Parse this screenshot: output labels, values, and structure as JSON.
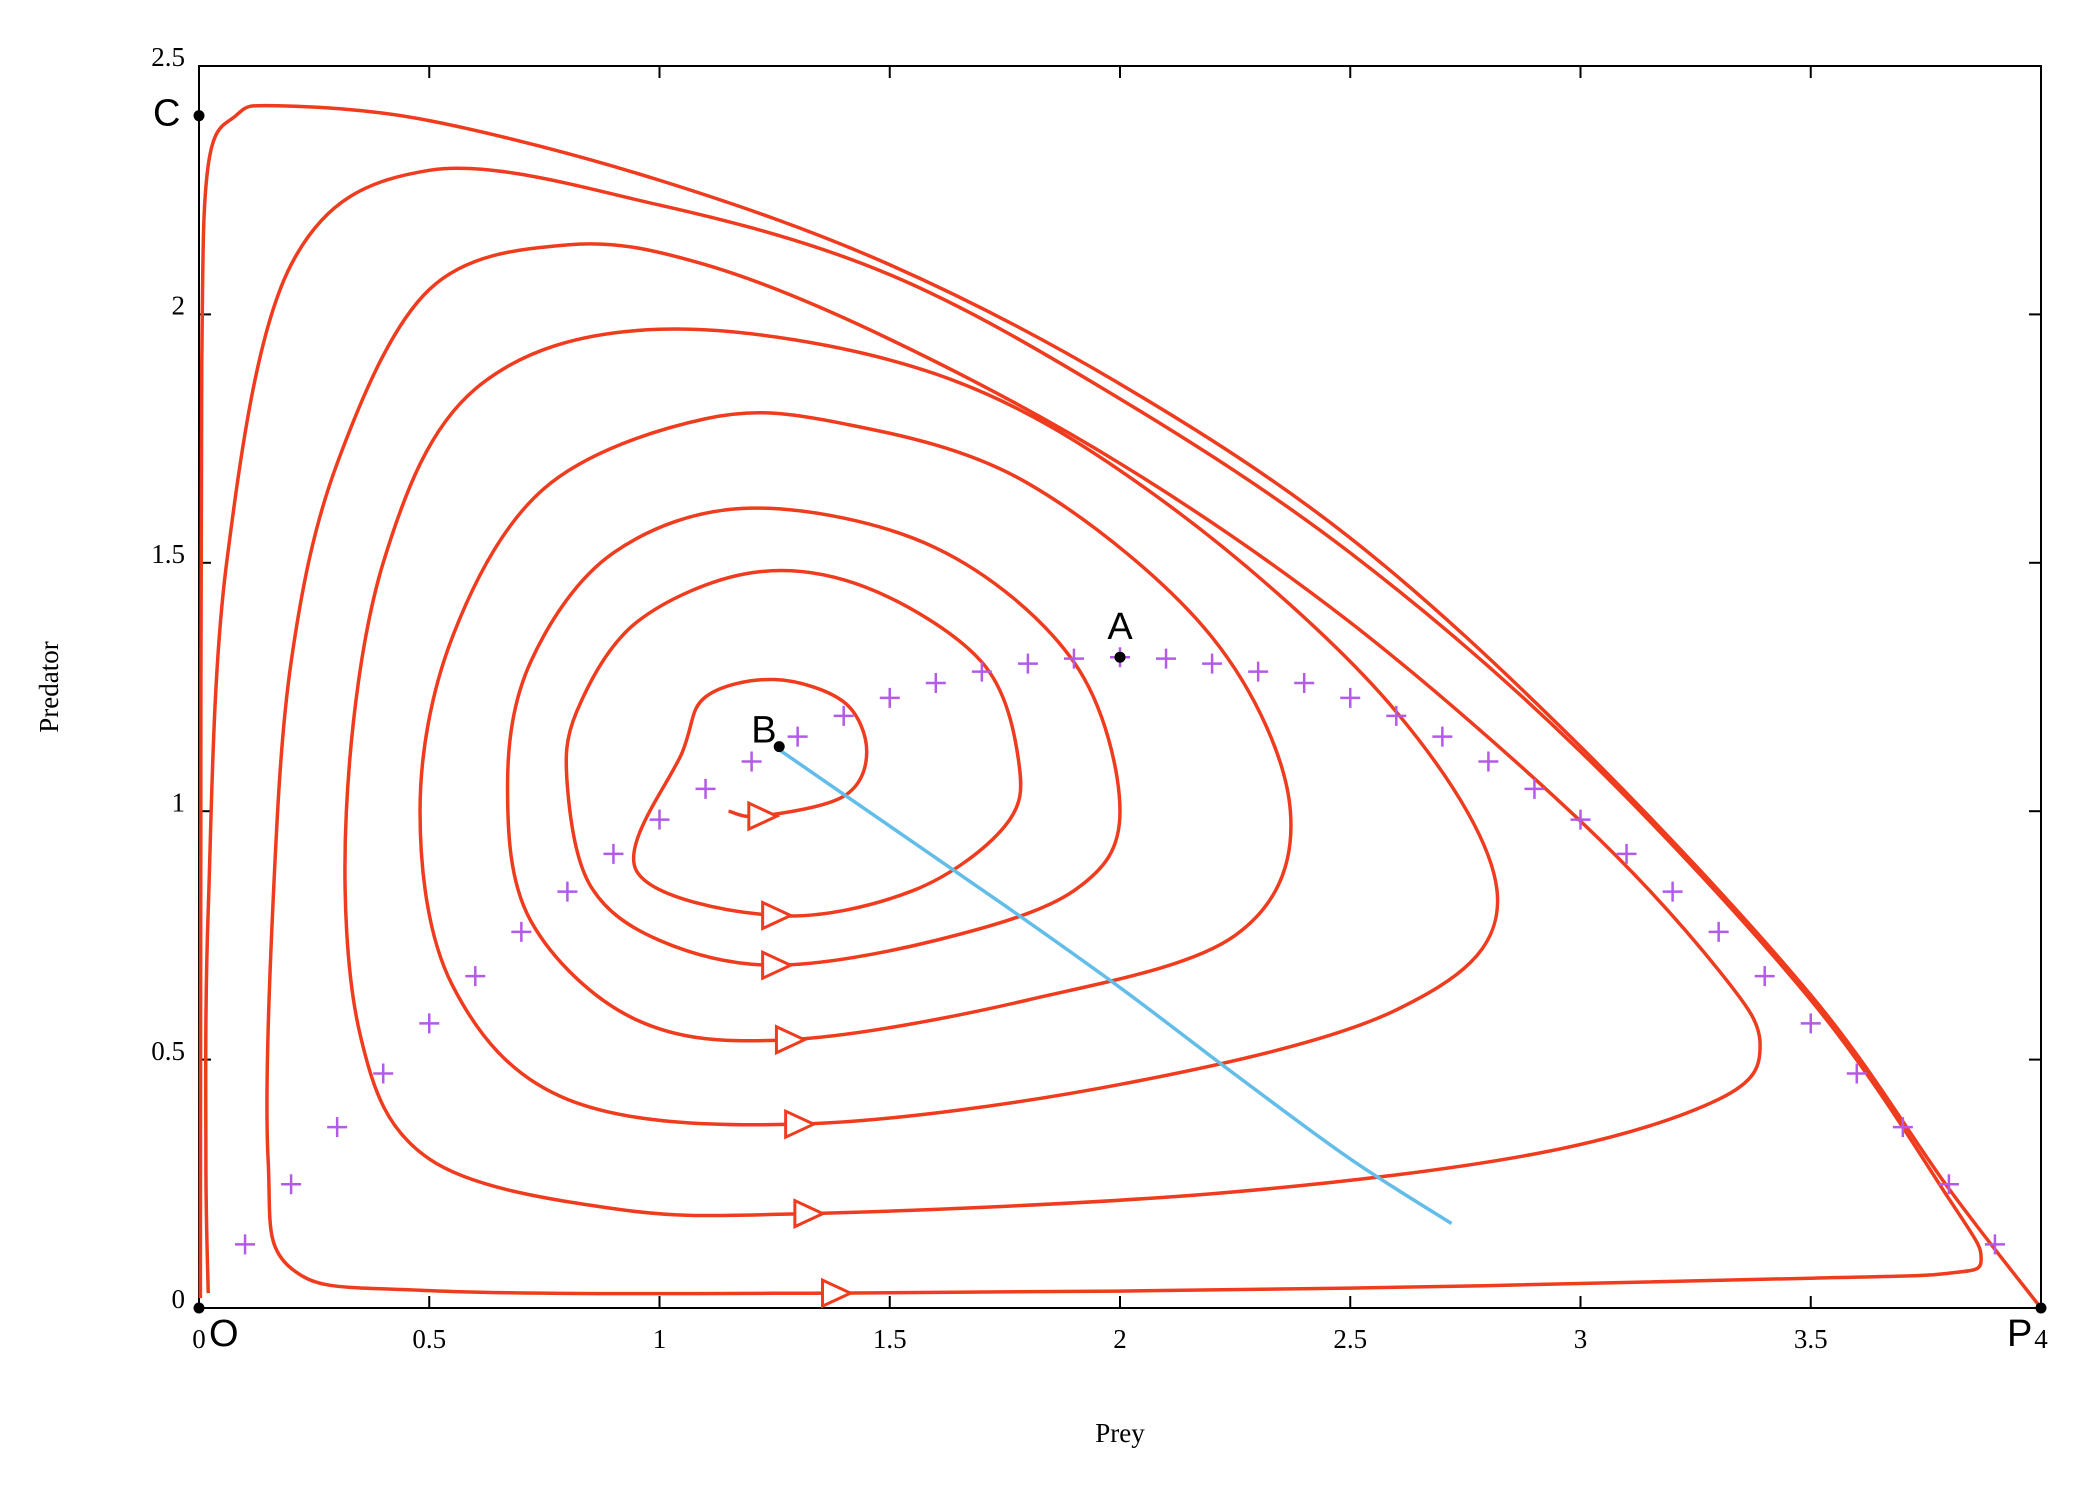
{
  "chart_data": {
    "type": "line",
    "xlabel": "Prey",
    "ylabel": "Predator",
    "xlim": [
      0,
      4
    ],
    "ylim": [
      0,
      2.5
    ],
    "xticks": [
      0,
      0.5,
      1,
      1.5,
      2,
      2.5,
      3,
      3.5,
      4
    ],
    "yticks": [
      0,
      0.5,
      1,
      1.5,
      2,
      2.5
    ],
    "series": [
      {
        "color": "#f03c1e",
        "arrows": true,
        "x": [
          1.15,
          1.22,
          1.4,
          1.45,
          1.4,
          1.25,
          1.1,
          1.05,
          0.95,
          1.25,
          1.55,
          1.75,
          1.78,
          1.7,
          1.45,
          1.2,
          0.95,
          0.82,
          0.8,
          0.85,
          1.0,
          1.25,
          1.6,
          1.9,
          2.0,
          1.9,
          1.6,
          1.2,
          0.9,
          0.72,
          0.67,
          0.72,
          0.95,
          1.28,
          1.8,
          2.25,
          2.37,
          2.2,
          1.8,
          1.4,
          1.1,
          0.75,
          0.55,
          0.48,
          0.55,
          0.8,
          1.3,
          2.0,
          2.6,
          2.82,
          2.6,
          2.1,
          1.6,
          1.0,
          0.6,
          0.4,
          0.32,
          0.35,
          0.5,
          0.9,
          1.32,
          2.2,
          2.9,
          3.3,
          3.39,
          3.3,
          3.0,
          2.5,
          2.0,
          1.5,
          1.1,
          0.8,
          0.5,
          0.3,
          0.2,
          0.16,
          0.15,
          0.2,
          0.5,
          1.38,
          2.5,
          3.5,
          3.8,
          3.87,
          3.8,
          3.5,
          3.0,
          2.5,
          2.0,
          1.5,
          1.0,
          0.5,
          0.2,
          0.06,
          0.02,
          0.015,
          0.02
        ],
        "values": [
          1.0,
          0.99,
          1.03,
          1.12,
          1.22,
          1.265,
          1.23,
          1.12,
          0.88,
          0.79,
          0.84,
          0.97,
          1.1,
          1.3,
          1.45,
          1.48,
          1.38,
          1.2,
          1.05,
          0.85,
          0.74,
          0.69,
          0.74,
          0.84,
          1.0,
          1.3,
          1.53,
          1.61,
          1.52,
          1.3,
          1.05,
          0.78,
          0.58,
          0.54,
          0.62,
          0.75,
          1.0,
          1.35,
          1.66,
          1.78,
          1.79,
          1.65,
          1.35,
          1.0,
          0.65,
          0.42,
          0.37,
          0.45,
          0.6,
          0.82,
          1.2,
          1.62,
          1.88,
          1.97,
          1.85,
          1.5,
          1.0,
          0.55,
          0.3,
          0.2,
          0.19,
          0.23,
          0.31,
          0.42,
          0.53,
          0.68,
          0.98,
          1.38,
          1.7,
          1.95,
          2.1,
          2.14,
          2.05,
          1.7,
          1.3,
          0.8,
          0.3,
          0.08,
          0.035,
          0.03,
          0.04,
          0.06,
          0.07,
          0.1,
          0.22,
          0.62,
          1.12,
          1.52,
          1.83,
          2.08,
          2.22,
          2.29,
          2.1,
          1.5,
          0.8,
          0.3,
          0.03
        ]
      },
      {
        "color": "#f03c1e",
        "x": [
          0.003,
          0.004,
          0.006,
          0.02,
          0.08,
          0.17,
          0.5,
          1.0,
          1.5,
          2.0,
          2.5,
          3.0,
          3.5,
          3.8,
          4.0
        ],
        "values": [
          0.02,
          1.0,
          1.9,
          2.3,
          2.4,
          2.42,
          2.39,
          2.27,
          2.1,
          1.86,
          1.55,
          1.13,
          0.63,
          0.24,
          0
        ]
      },
      {
        "color": "#b35ae8",
        "marker": "+",
        "x": [
          0.1,
          0.2,
          0.3,
          0.4,
          0.5,
          0.6,
          0.7,
          0.8,
          0.9,
          1.0,
          1.1,
          1.2,
          1.3,
          1.4,
          1.5,
          1.6,
          1.7,
          1.8,
          1.9,
          2.0,
          2.1,
          2.2,
          2.3,
          2.4,
          2.5,
          2.6,
          2.7,
          2.8,
          2.9,
          3.0,
          3.1,
          3.2,
          3.3,
          3.4,
          3.5,
          3.6,
          3.7,
          3.8,
          3.9
        ],
        "values": [
          0.128,
          0.249,
          0.364,
          0.472,
          0.573,
          0.668,
          0.757,
          0.838,
          0.914,
          0.983,
          1.045,
          1.1,
          1.15,
          1.192,
          1.228,
          1.258,
          1.281,
          1.297,
          1.307,
          1.31,
          1.307,
          1.297,
          1.281,
          1.258,
          1.228,
          1.192,
          1.15,
          1.1,
          1.045,
          0.983,
          0.914,
          0.838,
          0.757,
          0.668,
          0.573,
          0.472,
          0.364,
          0.249,
          0.128
        ]
      },
      {
        "color": "#62bde9",
        "x": [
          1.25,
          1.5,
          1.75,
          2.0,
          2.25,
          2.5,
          2.72
        ],
        "values": [
          1.13,
          0.97,
          0.81,
          0.645,
          0.47,
          0.3,
          0.17
        ]
      }
    ],
    "annotations": [
      {
        "label": "O",
        "x": 0,
        "y": 0
      },
      {
        "label": "P",
        "x": 4,
        "y": 0
      },
      {
        "label": "A",
        "x": 2,
        "y": 1.31
      },
      {
        "label": "B",
        "x": 1.26,
        "y": 1.13
      },
      {
        "label": "C",
        "x": 0,
        "y": 2.4
      }
    ]
  }
}
